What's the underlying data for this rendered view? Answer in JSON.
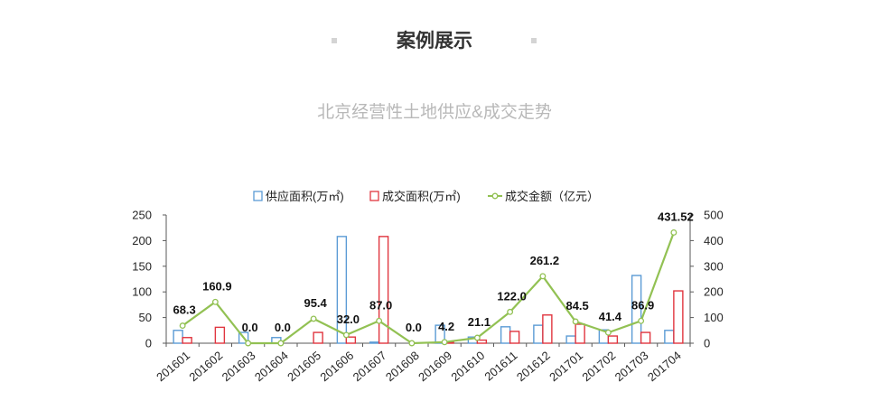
{
  "header": {
    "title": "案例展示"
  },
  "section": {
    "subtitle": "北京经营性土地供应&成交走势"
  },
  "chart_data": {
    "type": "bar",
    "categories": [
      "201601",
      "201602",
      "201603",
      "201604",
      "201605",
      "201606",
      "201607",
      "201608",
      "201609",
      "201610",
      "201611",
      "201612",
      "201701",
      "201702",
      "201703",
      "201704"
    ],
    "series": [
      {
        "name": "供应面积(万㎡)",
        "type": "bar",
        "axis": "left",
        "color": "#5b9bd5",
        "values": [
          25,
          0,
          21,
          11,
          0,
          208,
          2,
          0,
          35,
          12,
          32,
          35,
          14,
          26,
          132,
          25
        ]
      },
      {
        "name": "成交面积(万㎡)",
        "type": "bar",
        "axis": "left",
        "color": "#e0353f",
        "values": [
          11,
          31,
          0,
          0,
          21,
          12,
          208,
          0,
          2,
          6,
          23,
          55,
          37,
          14,
          21,
          102
        ]
      },
      {
        "name": "成交金额（亿元）",
        "type": "line",
        "axis": "right",
        "color": "#92c153",
        "values": [
          68.3,
          160.9,
          0,
          0,
          95.4,
          32,
          87,
          0,
          4.2,
          21.1,
          122,
          261.2,
          84.5,
          41.4,
          86.9,
          431.52
        ],
        "data_labels": [
          "68.3",
          "160.9",
          "0.0",
          "0.0",
          "95.4",
          "32.0",
          "87.0",
          "0.0",
          "4.2",
          "21.1",
          "122.0",
          "261.2",
          "84.5",
          "41.4",
          "86.9",
          "431.52"
        ]
      }
    ],
    "ylim": [
      0,
      250
    ],
    "yticks": [
      0,
      50,
      100,
      150,
      200,
      250
    ],
    "ylim_right": [
      0,
      500
    ],
    "yticks_right": [
      0,
      100,
      200,
      300,
      400,
      500
    ],
    "legend": "top",
    "grid": false
  }
}
